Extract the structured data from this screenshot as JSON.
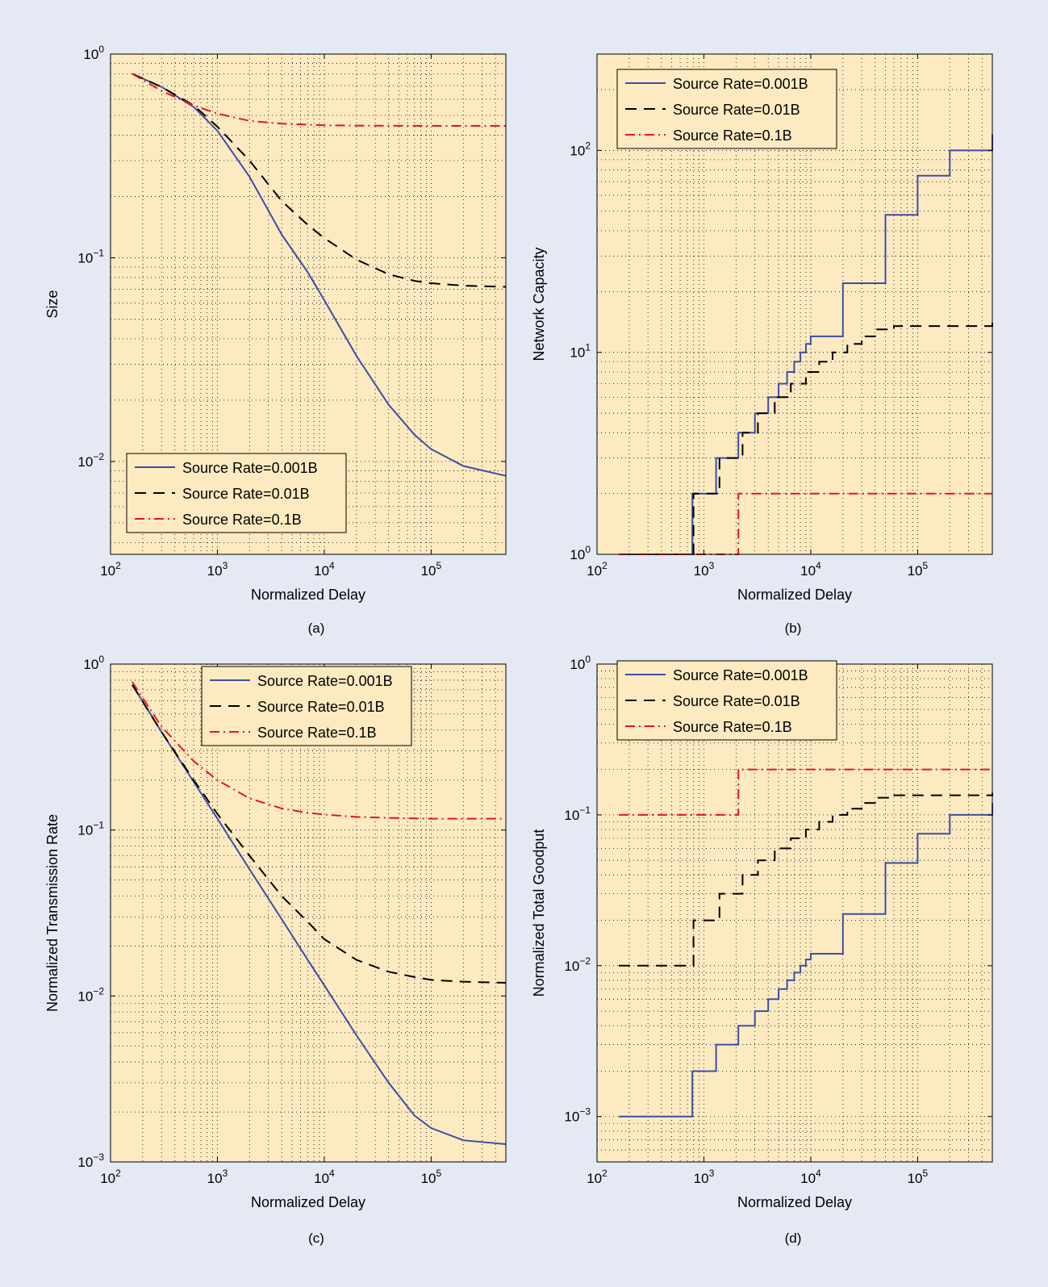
{
  "colors": {
    "page_background": "#e4e9f4",
    "plot_background": "#fdeac1",
    "series": [
      "#3a4fa5",
      "#000000",
      "#e8141c"
    ]
  },
  "chart_data": [
    {
      "panel": "(a)",
      "type": "line",
      "xscale": "log",
      "yscale": "log",
      "xlim": [
        100,
        500000
      ],
      "ylim": [
        0.0035,
        1
      ],
      "xlabel": "Normalized Delay",
      "ylabel": "Size",
      "x_ticks": [
        {
          "base": "10",
          "exp": "2"
        },
        {
          "base": "10",
          "exp": "3"
        },
        {
          "base": "10",
          "exp": "4"
        },
        {
          "base": "10",
          "exp": "5"
        }
      ],
      "y_ticks": [
        {
          "base": "10",
          "exp": "−2"
        },
        {
          "base": "10",
          "exp": "−1"
        },
        {
          "base": "10",
          "exp": "0"
        }
      ],
      "grid": true,
      "legend_position": "bottom-left",
      "series": [
        {
          "name": "Source Rate=0.001B",
          "style": "solid",
          "x": [
            160,
            300,
            600,
            1000,
            2000,
            4000,
            7000,
            10000,
            20000,
            40000,
            70000,
            100000,
            200000,
            500000
          ],
          "y": [
            0.8,
            0.69,
            0.55,
            0.42,
            0.25,
            0.13,
            0.085,
            0.062,
            0.033,
            0.019,
            0.0135,
            0.0115,
            0.0095,
            0.0085
          ]
        },
        {
          "name": "Source Rate=0.01B",
          "style": "dashed",
          "x": [
            160,
            300,
            600,
            1000,
            2000,
            4000,
            7000,
            10000,
            20000,
            40000,
            70000,
            100000,
            200000,
            500000
          ],
          "y": [
            0.8,
            0.69,
            0.56,
            0.44,
            0.3,
            0.19,
            0.145,
            0.125,
            0.098,
            0.083,
            0.077,
            0.075,
            0.073,
            0.072
          ]
        },
        {
          "name": "Source Rate=0.1B",
          "style": "dashdot",
          "x": [
            160,
            300,
            600,
            1000,
            2000,
            4000,
            7000,
            10000,
            30000,
            100000,
            500000
          ],
          "y": [
            0.8,
            0.66,
            0.56,
            0.51,
            0.47,
            0.455,
            0.45,
            0.447,
            0.445,
            0.444,
            0.444
          ]
        }
      ]
    },
    {
      "panel": "(b)",
      "type": "line",
      "xscale": "log",
      "yscale": "log",
      "xlim": [
        100,
        500000
      ],
      "ylim": [
        1,
        300
      ],
      "xlabel": "Normalized Delay",
      "ylabel": "Network Capacity",
      "x_ticks": [
        {
          "base": "10",
          "exp": "2"
        },
        {
          "base": "10",
          "exp": "3"
        },
        {
          "base": "10",
          "exp": "4"
        },
        {
          "base": "10",
          "exp": "5"
        }
      ],
      "y_ticks": [
        {
          "base": "10",
          "exp": "0"
        },
        {
          "base": "10",
          "exp": "1"
        },
        {
          "base": "10",
          "exp": "2"
        }
      ],
      "grid": true,
      "legend_position": "top-left",
      "series": [
        {
          "name": "Source Rate=0.001B",
          "style": "solid",
          "step": true,
          "x": [
            160,
            780,
            1300,
            2100,
            3000,
            4000,
            5000,
            6000,
            7000,
            8000,
            9000,
            10000,
            20000,
            50000,
            100000,
            200000,
            500000
          ],
          "y": [
            1,
            2,
            3,
            4,
            5,
            6,
            7,
            8,
            9,
            10,
            11,
            12,
            22,
            48,
            75,
            100,
            120
          ]
        },
        {
          "name": "Source Rate=0.01B",
          "style": "dashed",
          "step": true,
          "x": [
            160,
            800,
            1400,
            2300,
            3200,
            4600,
            6500,
            9000,
            12000,
            16000,
            22000,
            30000,
            40000,
            60000,
            500000
          ],
          "y": [
            1,
            2,
            3,
            4,
            5,
            6,
            7,
            8,
            9,
            10,
            11,
            12,
            13,
            13.5,
            14
          ]
        },
        {
          "name": "Source Rate=0.1B",
          "style": "dashdot",
          "step": true,
          "x": [
            160,
            2100,
            500000
          ],
          "y": [
            1,
            2,
            2
          ]
        }
      ]
    },
    {
      "panel": "(c)",
      "type": "line",
      "xscale": "log",
      "yscale": "log",
      "xlim": [
        100,
        500000
      ],
      "ylim": [
        0.001,
        1
      ],
      "xlabel": "Normalized Delay",
      "ylabel": "Normalized Transmission Rate",
      "x_ticks": [
        {
          "base": "10",
          "exp": "2"
        },
        {
          "base": "10",
          "exp": "3"
        },
        {
          "base": "10",
          "exp": "4"
        },
        {
          "base": "10",
          "exp": "5"
        }
      ],
      "y_ticks": [
        {
          "base": "10",
          "exp": "−3"
        },
        {
          "base": "10",
          "exp": "−2"
        },
        {
          "base": "10",
          "exp": "−1"
        },
        {
          "base": "10",
          "exp": "0"
        }
      ],
      "grid": true,
      "legend_position": "top-right",
      "series": [
        {
          "name": "Source Rate=0.001B",
          "style": "solid",
          "x": [
            160,
            300,
            600,
            1000,
            2000,
            4000,
            7000,
            10000,
            20000,
            40000,
            70000,
            100000,
            200000,
            500000
          ],
          "y": [
            0.75,
            0.39,
            0.195,
            0.117,
            0.058,
            0.029,
            0.0165,
            0.0116,
            0.0058,
            0.003,
            0.0019,
            0.0016,
            0.00135,
            0.00128
          ]
        },
        {
          "name": "Source Rate=0.01B",
          "style": "dashed",
          "x": [
            160,
            300,
            600,
            1000,
            2000,
            4000,
            7000,
            10000,
            20000,
            40000,
            70000,
            100000,
            200000,
            500000
          ],
          "y": [
            0.75,
            0.39,
            0.2,
            0.125,
            0.07,
            0.04,
            0.028,
            0.022,
            0.0165,
            0.014,
            0.013,
            0.0125,
            0.0122,
            0.012
          ]
        },
        {
          "name": "Source Rate=0.1B",
          "style": "dashdot",
          "x": [
            160,
            300,
            600,
            1000,
            2000,
            4000,
            7000,
            10000,
            20000,
            50000,
            100000,
            500000
          ],
          "y": [
            0.78,
            0.42,
            0.26,
            0.2,
            0.155,
            0.135,
            0.127,
            0.124,
            0.12,
            0.118,
            0.117,
            0.117
          ]
        }
      ]
    },
    {
      "panel": "(d)",
      "type": "line",
      "xscale": "log",
      "yscale": "log",
      "xlim": [
        100,
        500000
      ],
      "ylim": [
        0.0005,
        1
      ],
      "xlabel": "Normalized Delay",
      "ylabel": "Normalized Total Goodput",
      "x_ticks": [
        {
          "base": "10",
          "exp": "2"
        },
        {
          "base": "10",
          "exp": "3"
        },
        {
          "base": "10",
          "exp": "4"
        },
        {
          "base": "10",
          "exp": "5"
        }
      ],
      "y_ticks": [
        {
          "base": "10",
          "exp": "−3"
        },
        {
          "base": "10",
          "exp": "−2"
        },
        {
          "base": "10",
          "exp": "−1"
        },
        {
          "base": "10",
          "exp": "0"
        }
      ],
      "grid": true,
      "legend_position": "top-left",
      "series": [
        {
          "name": "Source Rate=0.001B",
          "style": "solid",
          "step": true,
          "x": [
            160,
            780,
            1300,
            2100,
            3000,
            4000,
            5000,
            6000,
            7000,
            8000,
            9000,
            10000,
            20000,
            50000,
            100000,
            200000,
            500000
          ],
          "y": [
            0.001,
            0.002,
            0.003,
            0.004,
            0.005,
            0.006,
            0.007,
            0.008,
            0.009,
            0.01,
            0.011,
            0.012,
            0.022,
            0.048,
            0.075,
            0.1,
            0.12
          ]
        },
        {
          "name": "Source Rate=0.01B",
          "style": "dashed",
          "step": true,
          "x": [
            160,
            800,
            1400,
            2300,
            3200,
            4600,
            6500,
            9000,
            12000,
            16000,
            22000,
            30000,
            40000,
            60000,
            500000
          ],
          "y": [
            0.01,
            0.02,
            0.03,
            0.04,
            0.05,
            0.06,
            0.07,
            0.08,
            0.09,
            0.1,
            0.11,
            0.12,
            0.13,
            0.135,
            0.14
          ]
        },
        {
          "name": "Source Rate=0.1B",
          "style": "dashdot",
          "step": true,
          "x": [
            160,
            2100,
            500000
          ],
          "y": [
            0.1,
            0.2,
            0.2
          ]
        }
      ]
    }
  ]
}
